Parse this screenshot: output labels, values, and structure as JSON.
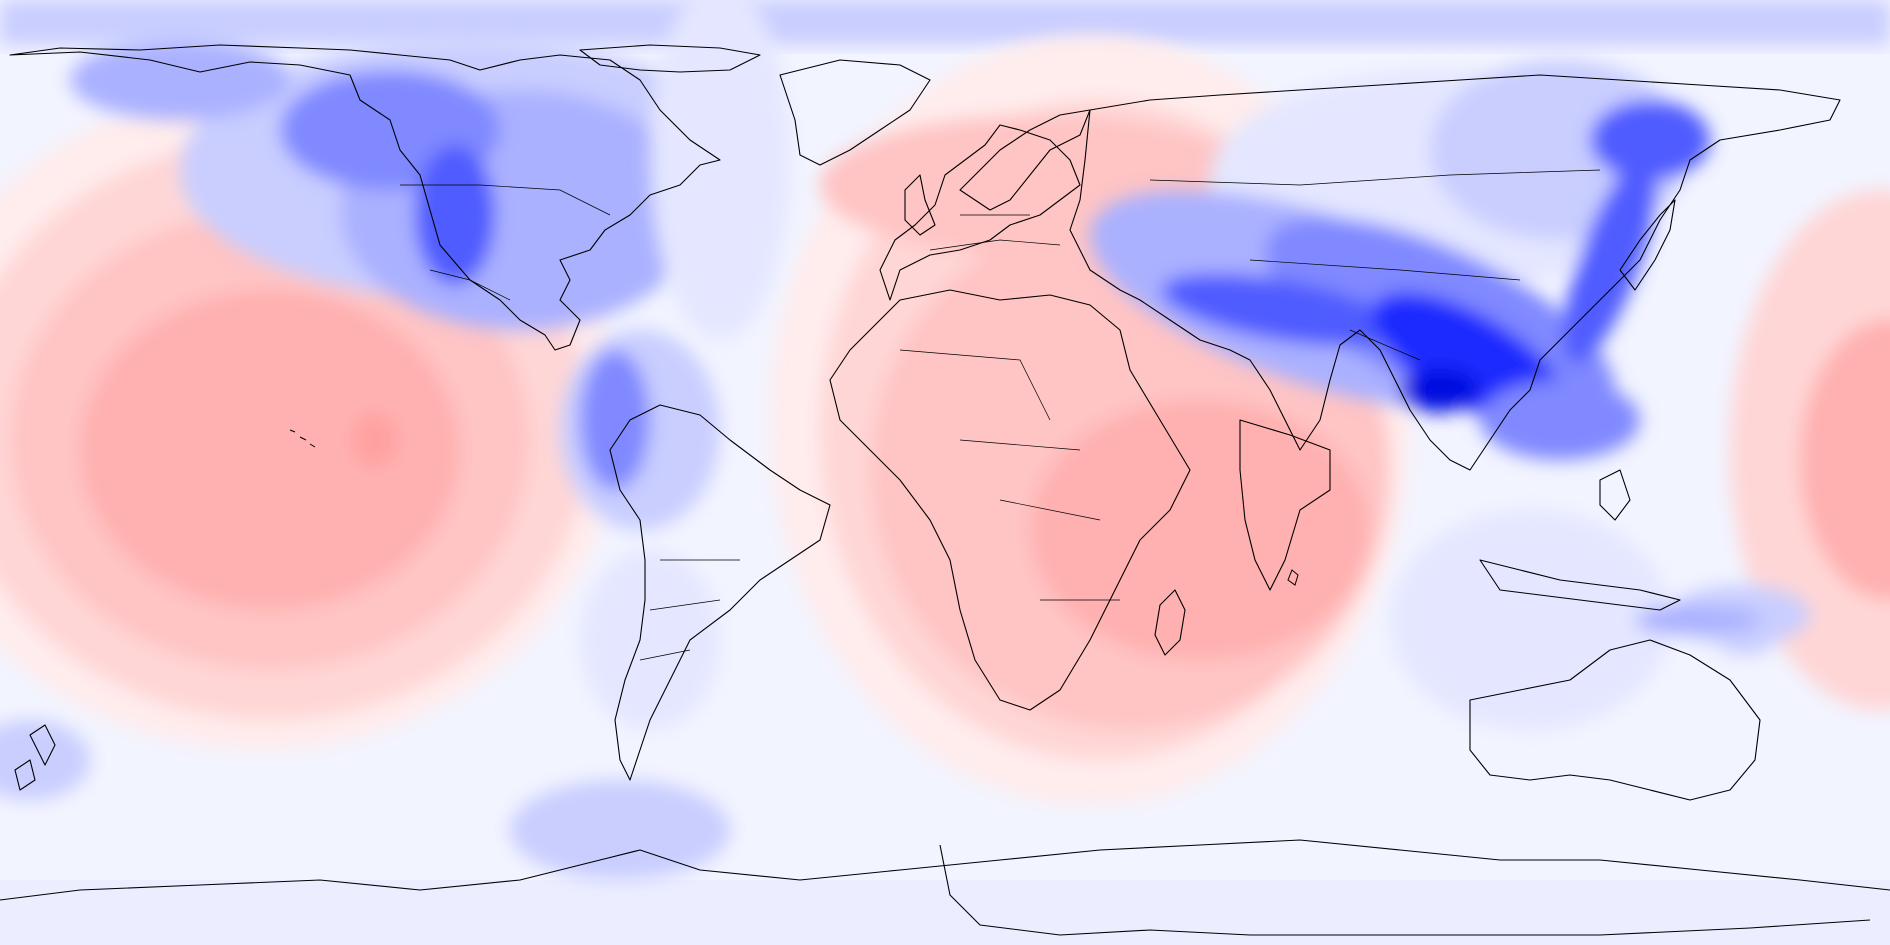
{
  "map": {
    "projection": "equirectangular",
    "extent": {
      "lon": [
        -180,
        180
      ],
      "lat": [
        -90,
        90
      ]
    },
    "colors": {
      "background": "#f2f4ff",
      "negative": [
        "#e4e7ff",
        "#c9ceff",
        "#aab1ff",
        "#8089ff",
        "#4f5bff",
        "#1f2bff",
        "#0008e0"
      ],
      "positive": [
        "#ffecec",
        "#ffd6d6",
        "#ffc4c4",
        "#ffb0b0",
        "#ffa0a0"
      ]
    },
    "layers": [
      "anomaly-shading",
      "coastlines",
      "country-borders"
    ],
    "features": [
      {
        "name": "central-pacific-positive",
        "sign": "positive",
        "peak_level": 4
      },
      {
        "name": "atlantic-africa-indian-positive",
        "sign": "positive",
        "peak_level": 4
      },
      {
        "name": "east-asia-negative-band",
        "sign": "negative",
        "peak_level": 7
      },
      {
        "name": "western-north-america-negative",
        "sign": "negative",
        "peak_level": 5
      },
      {
        "name": "andes-negative",
        "sign": "negative",
        "peak_level": 3
      }
    ]
  }
}
